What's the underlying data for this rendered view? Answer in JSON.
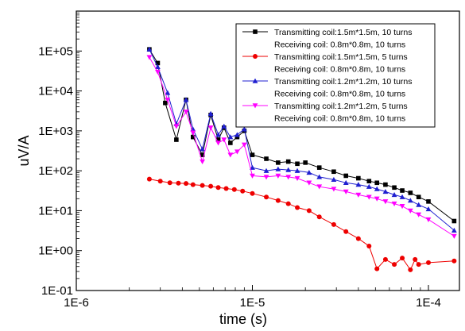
{
  "chart_data": {
    "type": "line",
    "title": "",
    "xlabel": "time (s)",
    "ylabel": "uV/A",
    "x_scale": "log",
    "y_scale": "log",
    "xlim": [
      1e-06,
      0.00015
    ],
    "ylim": [
      0.1,
      1000000
    ],
    "x_ticks": [
      {
        "value": 1e-06,
        "label": "1E-6"
      },
      {
        "value": 1e-05,
        "label": "1E-5"
      },
      {
        "value": 0.0001,
        "label": "1E-4"
      }
    ],
    "y_ticks": [
      {
        "value": 0.1,
        "label": "1E-01"
      },
      {
        "value": 1,
        "label": "1E+00"
      },
      {
        "value": 10,
        "label": "1E+01"
      },
      {
        "value": 100,
        "label": "1E+02"
      },
      {
        "value": 1000,
        "label": "1E+03"
      },
      {
        "value": 10000,
        "label": "1E+04"
      },
      {
        "value": 100000,
        "label": "1E+05"
      }
    ],
    "grid": false,
    "legend_position": "top-right",
    "series": [
      {
        "name": "Transmitting coil:1.5m*1.5m, 10 turns Receiving coil: 0.8m*0.8m, 10 turns",
        "legend_lines": [
          "Transmitting coil:1.5m*1.5m, 10 turns",
          "Receiving coil: 0.8m*0.8m, 10 turns"
        ],
        "color": "#000000",
        "marker": "square",
        "x": [
          2.6e-06,
          2.9e-06,
          3.2e-06,
          3.7e-06,
          4.2e-06,
          4.6e-06,
          5.2e-06,
          5.8e-06,
          6.4e-06,
          6.9e-06,
          7.5e-06,
          8.2e-06,
          9e-06,
          1e-05,
          1.2e-05,
          1.4e-05,
          1.6e-05,
          1.8e-05,
          2e-05,
          2.4e-05,
          2.9e-05,
          3.4e-05,
          4e-05,
          4.6e-05,
          5.1e-05,
          5.7e-05,
          6.4e-05,
          7.1e-05,
          7.9e-05,
          8.8e-05,
          0.0001,
          0.00014
        ],
        "y": [
          110000,
          50000,
          5000,
          600,
          6000,
          700,
          250,
          2500,
          600,
          1200,
          500,
          700,
          1000,
          250,
          200,
          160,
          170,
          150,
          160,
          120,
          95,
          75,
          65,
          55,
          50,
          45,
          38,
          32,
          28,
          22,
          17,
          5.5
        ]
      },
      {
        "name": "Transmitting coil:1.5m*1.5m, 5 turns Receiving coil: 0.8m*0.8m, 10 turns",
        "legend_lines": [
          "Transmitting coil:1.5m*1.5m, 5 turns",
          "Receiving coil: 0.8m*0.8m, 10 turns"
        ],
        "color": "#ee0000",
        "marker": "circle",
        "x": [
          2.6e-06,
          3e-06,
          3.4e-06,
          3.8e-06,
          4.2e-06,
          4.6e-06,
          5.2e-06,
          5.8e-06,
          6.4e-06,
          7.1e-06,
          7.9e-06,
          8.8e-06,
          1e-05,
          1.2e-05,
          1.4e-05,
          1.6e-05,
          1.8e-05,
          2.1e-05,
          2.4e-05,
          2.9e-05,
          3.4e-05,
          4e-05,
          4.6e-05,
          5.1e-05,
          5.7e-05,
          6.4e-05,
          7.1e-05,
          7.9e-05,
          8.4e-05,
          8.8e-05,
          0.0001,
          0.00014
        ],
        "y": [
          62,
          55,
          50,
          49,
          48,
          45,
          43,
          41,
          38,
          36,
          34,
          31,
          27,
          22,
          18,
          15,
          12,
          10,
          7,
          4.5,
          3,
          2,
          1.3,
          0.35,
          0.6,
          0.45,
          0.65,
          0.33,
          0.6,
          0.45,
          0.5,
          0.55
        ]
      },
      {
        "name": "Transmitting coil:1.2m*1.2m, 10 turns Receiving coil: 0.8m*0.8m, 10 turns",
        "legend_lines": [
          "Transmitting coil:1.2m*1.2m, 10 turns",
          "Receiving coil: 0.8m*0.8m, 10 turns"
        ],
        "color": "#1f1fd0",
        "marker": "triangle-up",
        "x": [
          2.6e-06,
          2.9e-06,
          3.3e-06,
          3.7e-06,
          4.2e-06,
          4.6e-06,
          5.2e-06,
          5.8e-06,
          6.4e-06,
          6.9e-06,
          7.5e-06,
          8.2e-06,
          9e-06,
          1e-05,
          1.2e-05,
          1.4e-05,
          1.6e-05,
          1.8e-05,
          2.1e-05,
          2.4e-05,
          2.9e-05,
          3.4e-05,
          4e-05,
          4.6e-05,
          5.1e-05,
          5.7e-05,
          6.4e-05,
          7.1e-05,
          7.9e-05,
          8.8e-05,
          0.0001,
          0.00014
        ],
        "y": [
          110000,
          40000,
          9000,
          1500,
          6000,
          1100,
          350,
          2700,
          800,
          1300,
          700,
          800,
          1100,
          120,
          100,
          110,
          105,
          100,
          90,
          70,
          60,
          50,
          45,
          40,
          35,
          30,
          25,
          22,
          18,
          14,
          11,
          3.2
        ]
      },
      {
        "name": "Transmitting coil:1.2m*1.2m, 5 turns Receiving coil: 0.8m*0.8m, 10 turns",
        "legend_lines": [
          "Transmitting coil:1.2m*1.2m, 5 turns",
          "Receiving coil: 0.8m*0.8m, 10 turns"
        ],
        "color": "#ff00ff",
        "marker": "triangle-down",
        "x": [
          2.6e-06,
          2.9e-06,
          3.3e-06,
          3.7e-06,
          4.2e-06,
          4.6e-06,
          5.2e-06,
          5.8e-06,
          6.4e-06,
          6.9e-06,
          7.5e-06,
          8.2e-06,
          9e-06,
          1e-05,
          1.2e-05,
          1.4e-05,
          1.6e-05,
          1.8e-05,
          2.1e-05,
          2.4e-05,
          2.9e-05,
          3.4e-05,
          4e-05,
          4.6e-05,
          5.1e-05,
          5.7e-05,
          6.4e-05,
          7.1e-05,
          7.9e-05,
          8.8e-05,
          0.0001,
          0.00014
        ],
        "y": [
          70000,
          30000,
          6000,
          1300,
          3000,
          900,
          170,
          1200,
          500,
          600,
          250,
          300,
          450,
          75,
          70,
          75,
          70,
          65,
          50,
          40,
          35,
          30,
          25,
          22,
          20,
          17,
          15,
          13,
          10,
          8,
          6,
          2.3
        ]
      }
    ]
  }
}
